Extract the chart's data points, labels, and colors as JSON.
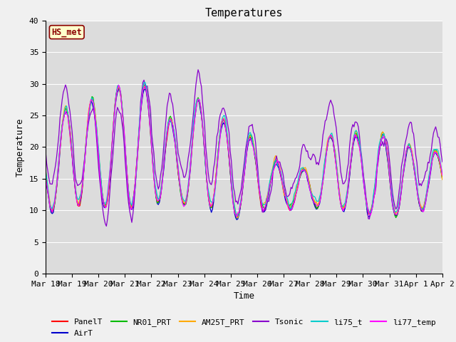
{
  "title": "Temperatures",
  "xlabel": "Time",
  "ylabel": "Temperature",
  "ylim": [
    0,
    40
  ],
  "plot_bg_color": "#dcdcdc",
  "fig_bg_color": "#f0f0f0",
  "annotation_text": "HS_met",
  "annotation_color": "#8b0000",
  "annotation_bg": "#ffffcc",
  "series_colors": {
    "PanelT": "#ff0000",
    "AirT": "#0000cc",
    "NR01_PRT": "#00bb00",
    "AM25T_PRT": "#ffaa00",
    "Tsonic": "#8800cc",
    "li75_t": "#00cccc",
    "li77_temp": "#ff00ff"
  },
  "x_tick_labels": [
    "Mar 18",
    "Mar 19",
    "Mar 20",
    "Mar 21",
    "Mar 22",
    "Mar 23",
    "Mar 24",
    "Mar 25",
    "Mar 26",
    "Mar 27",
    "Mar 28",
    "Mar 29",
    "Mar 30",
    "Mar 31",
    "Apr 1",
    "Apr 2"
  ],
  "n_days": 15,
  "pts_per_day": 24
}
